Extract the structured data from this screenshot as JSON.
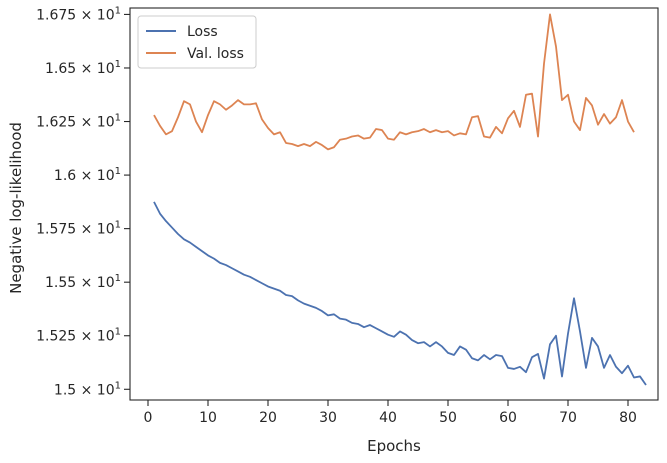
{
  "chart_data": {
    "type": "line",
    "xlabel": "Epochs",
    "ylabel": "Negative log-likelihood",
    "xlim": [
      -3,
      85
    ],
    "ylim": [
      14.95,
      16.78
    ],
    "xticks": [
      0,
      10,
      20,
      30,
      40,
      50,
      60,
      70,
      80
    ],
    "xtick_labels": [
      "0",
      "10",
      "20",
      "30",
      "40",
      "50",
      "60",
      "70",
      "80"
    ],
    "yticks": [
      15.0,
      15.25,
      15.5,
      15.75,
      16.0,
      16.25,
      16.5,
      16.75
    ],
    "ytick_labels": [
      {
        "mant": "1.5",
        "exp": "1"
      },
      {
        "mant": "1.525",
        "exp": "1"
      },
      {
        "mant": "1.55",
        "exp": "1"
      },
      {
        "mant": "1.575",
        "exp": "1"
      },
      {
        "mant": "1.6",
        "exp": "1"
      },
      {
        "mant": "1.625",
        "exp": "1"
      },
      {
        "mant": "1.65",
        "exp": "1"
      },
      {
        "mant": "1.675",
        "exp": "1"
      }
    ],
    "grid": false,
    "legend_position": "top-left",
    "colors": {
      "loss": "#4c72b0",
      "val_loss": "#dd8452",
      "axis": "#262626"
    },
    "series": [
      {
        "name": "Loss",
        "color": "#4c72b0",
        "values": [
          15.875,
          15.82,
          15.785,
          15.755,
          15.725,
          15.7,
          15.685,
          15.665,
          15.645,
          15.625,
          15.61,
          15.59,
          15.58,
          15.565,
          15.55,
          15.535,
          15.525,
          15.51,
          15.495,
          15.48,
          15.47,
          15.46,
          15.44,
          15.435,
          15.415,
          15.4,
          15.39,
          15.38,
          15.365,
          15.345,
          15.35,
          15.33,
          15.325,
          15.31,
          15.305,
          15.29,
          15.3,
          15.285,
          15.27,
          15.255,
          15.245,
          15.27,
          15.255,
          15.23,
          15.215,
          15.22,
          15.2,
          15.22,
          15.2,
          15.17,
          15.16,
          15.2,
          15.185,
          15.145,
          15.135,
          15.16,
          15.14,
          15.16,
          15.155,
          15.1,
          15.095,
          15.105,
          15.08,
          15.15,
          15.165,
          15.05,
          15.21,
          15.25,
          15.06,
          15.26,
          15.425,
          15.27,
          15.1,
          15.24,
          15.2,
          15.1,
          15.16,
          15.105,
          15.075,
          15.11,
          15.055,
          15.06,
          15.02
        ]
      },
      {
        "name": "Val. loss",
        "color": "#dd8452",
        "values": [
          16.28,
          16.23,
          16.19,
          16.205,
          16.27,
          16.345,
          16.33,
          16.25,
          16.2,
          16.28,
          16.345,
          16.33,
          16.305,
          16.325,
          16.35,
          16.33,
          16.33,
          16.335,
          16.26,
          16.22,
          16.19,
          16.2,
          16.15,
          16.145,
          16.135,
          16.145,
          16.135,
          16.155,
          16.14,
          16.12,
          16.13,
          16.165,
          16.17,
          16.18,
          16.185,
          16.17,
          16.175,
          16.215,
          16.21,
          16.17,
          16.165,
          16.2,
          16.19,
          16.2,
          16.205,
          16.215,
          16.2,
          16.21,
          16.2,
          16.205,
          16.185,
          16.195,
          16.19,
          16.27,
          16.275,
          16.18,
          16.175,
          16.225,
          16.195,
          16.265,
          16.3,
          16.225,
          16.375,
          16.38,
          16.18,
          16.52,
          16.75,
          16.6,
          16.35,
          16.375,
          16.25,
          16.21,
          16.36,
          16.325,
          16.235,
          16.285,
          16.24,
          16.27,
          16.35,
          16.25,
          16.2
        ]
      }
    ]
  }
}
